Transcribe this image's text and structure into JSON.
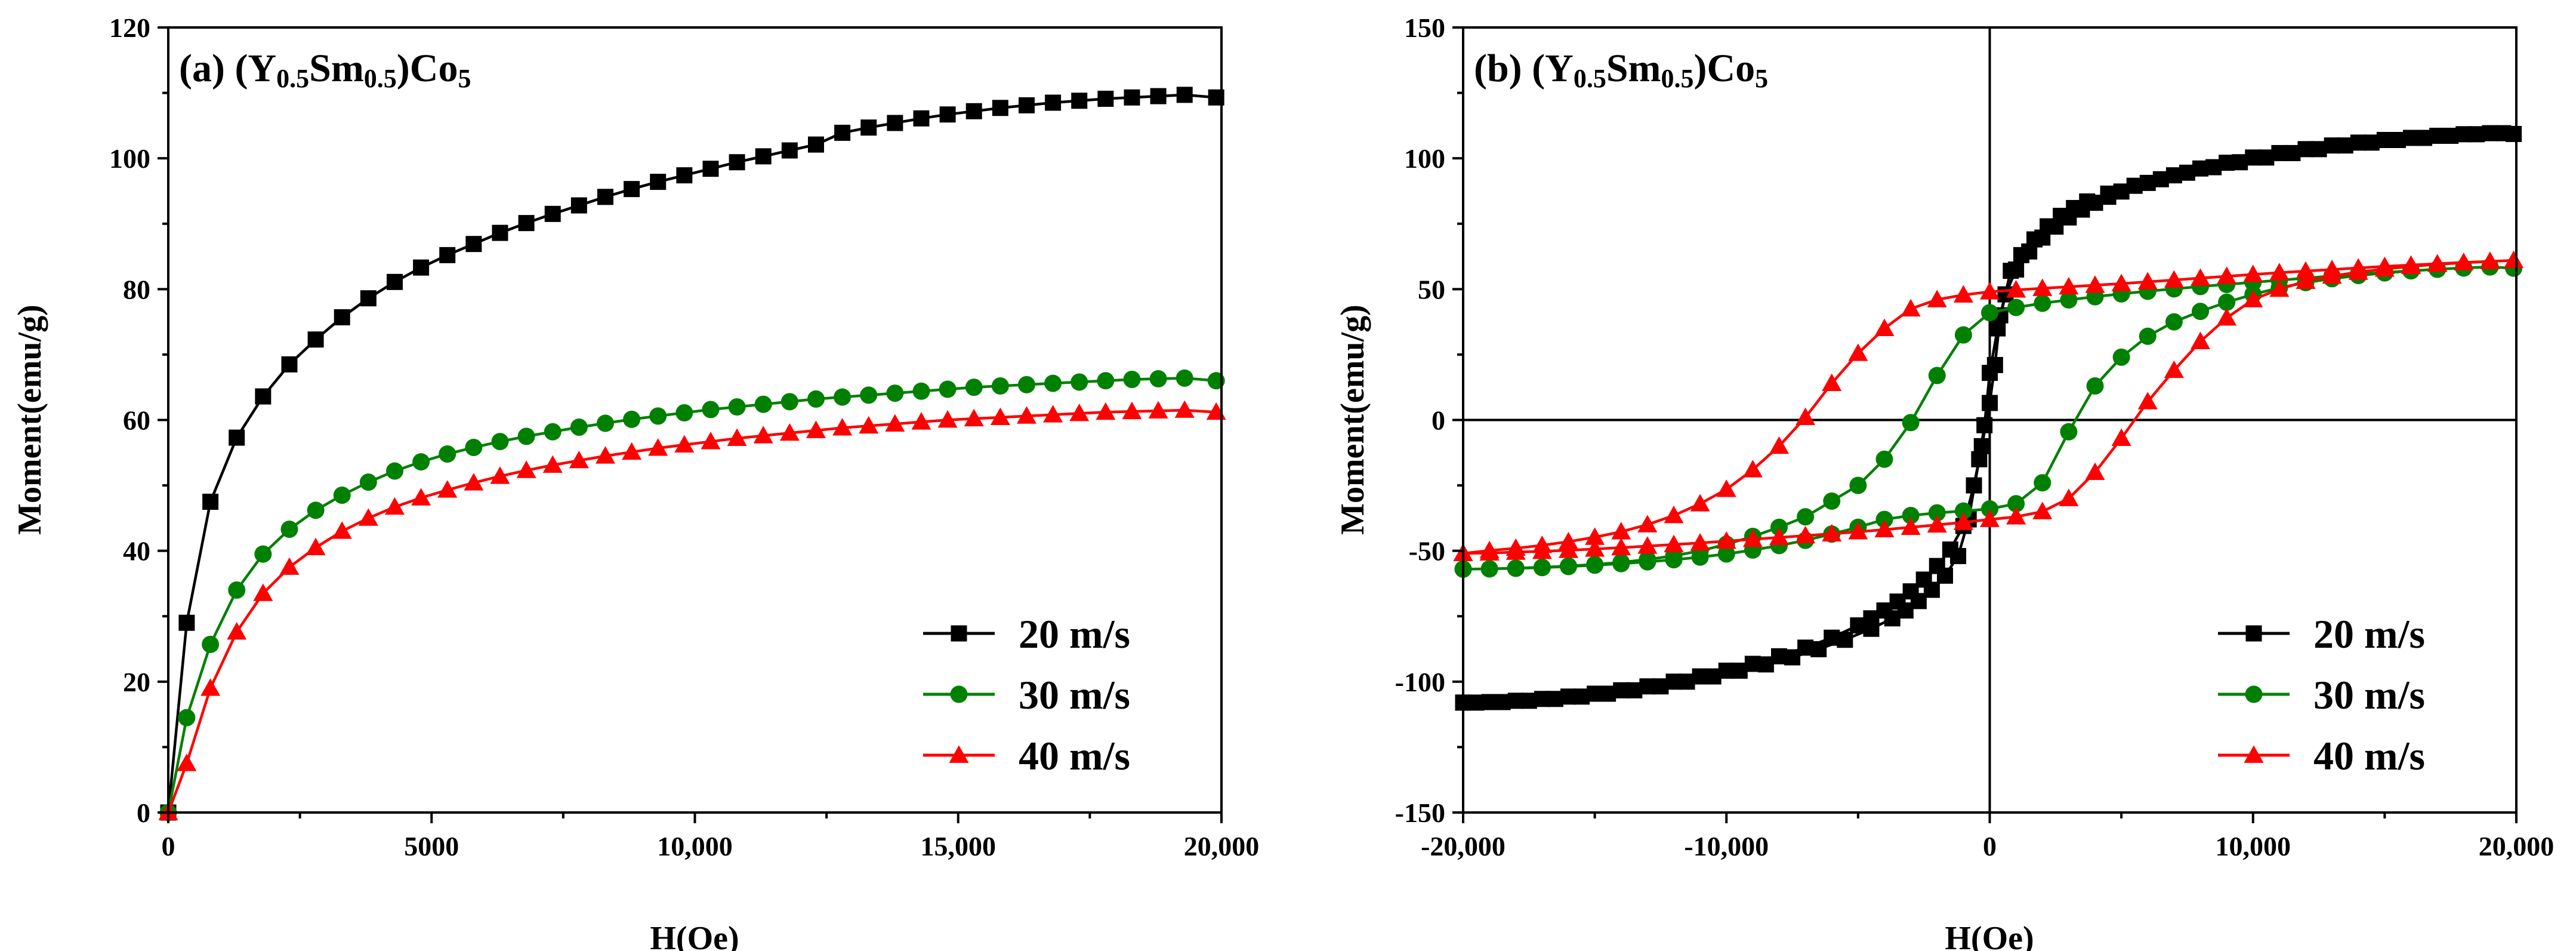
{
  "figure": {
    "panel_a_label": "(a) ",
    "panel_b_label": "(b) "
  },
  "chart_data": [
    {
      "type": "line",
      "title_parts": [
        "(a) (Y",
        "0.5",
        "Sm",
        "0.5",
        ")Co",
        "5"
      ],
      "xlabel": "H(Oe)",
      "ylabel": "Moment(emu/g)",
      "xlim": [
        0,
        20000
      ],
      "ylim": [
        0,
        120
      ],
      "xticks": [
        0,
        5000,
        10000,
        15000,
        20000
      ],
      "xtick_labels": [
        "0",
        "5000",
        "10,000",
        "15,000",
        "20,000"
      ],
      "yticks": [
        0,
        20,
        40,
        60,
        80,
        100,
        120
      ],
      "ytick_labels": [
        "0",
        "20",
        "40",
        "60",
        "80",
        "100",
        "120"
      ],
      "legend_position": "bottom-right",
      "series": [
        {
          "name": "20 m/s",
          "color": "#000000",
          "marker": "square",
          "x": [
            0,
            350,
            800,
            1300,
            1800,
            2300,
            2800,
            3300,
            3800,
            4300,
            4800,
            5300,
            5800,
            6300,
            6800,
            7300,
            7800,
            8300,
            8800,
            9300,
            9800,
            10300,
            10800,
            11300,
            11800,
            12300,
            12800,
            13300,
            13800,
            14300,
            14800,
            15300,
            15800,
            16300,
            16800,
            17300,
            17800,
            18300,
            18800,
            19300,
            19900
          ],
          "y": [
            0,
            29,
            47.5,
            57.3,
            63.6,
            68.5,
            72.3,
            75.7,
            78.6,
            81.1,
            83.3,
            85.2,
            86.9,
            88.6,
            90.1,
            91.5,
            92.8,
            94.1,
            95.3,
            96.4,
            97.4,
            98.4,
            99.4,
            100.3,
            101.2,
            102.1,
            103.9,
            104.7,
            105.4,
            106.1,
            106.7,
            107.2,
            107.7,
            108.1,
            108.5,
            108.8,
            109.1,
            109.3,
            109.5,
            109.7,
            109.3
          ]
        },
        {
          "name": "30 m/s",
          "color": "#008000",
          "marker": "circle",
          "x": [
            0,
            350,
            800,
            1300,
            1800,
            2300,
            2800,
            3300,
            3800,
            4300,
            4800,
            5300,
            5800,
            6300,
            6800,
            7300,
            7800,
            8300,
            8800,
            9300,
            9800,
            10300,
            10800,
            11300,
            11800,
            12300,
            12800,
            13300,
            13800,
            14300,
            14800,
            15300,
            15800,
            16300,
            16800,
            17300,
            17800,
            18300,
            18800,
            19300,
            19900
          ],
          "y": [
            0,
            14.5,
            25.7,
            34,
            39.5,
            43.3,
            46.2,
            48.5,
            50.5,
            52.2,
            53.6,
            54.8,
            55.8,
            56.7,
            57.5,
            58.2,
            58.9,
            59.5,
            60.1,
            60.6,
            61.1,
            61.6,
            62,
            62.4,
            62.8,
            63.2,
            63.5,
            63.8,
            64.1,
            64.4,
            64.7,
            65,
            65.2,
            65.4,
            65.6,
            65.8,
            66,
            66.2,
            66.3,
            66.4,
            66
          ]
        },
        {
          "name": "40 m/s",
          "color": "#ff0000",
          "marker": "triangle",
          "x": [
            0,
            350,
            800,
            1300,
            1800,
            2300,
            2800,
            3300,
            3800,
            4300,
            4800,
            5300,
            5800,
            6300,
            6800,
            7300,
            7800,
            8300,
            8800,
            9300,
            9800,
            10300,
            10800,
            11300,
            11800,
            12300,
            12800,
            13300,
            13800,
            14300,
            14800,
            15300,
            15800,
            16300,
            16800,
            17300,
            17800,
            18300,
            18800,
            19300,
            19900
          ],
          "y": [
            0,
            7.5,
            19,
            27.6,
            33.5,
            37.5,
            40.5,
            43,
            45,
            46.7,
            48.1,
            49.3,
            50.4,
            51.4,
            52.3,
            53.1,
            53.8,
            54.5,
            55.1,
            55.7,
            56.2,
            56.7,
            57.2,
            57.6,
            58,
            58.4,
            58.8,
            59.1,
            59.4,
            59.7,
            60,
            60.2,
            60.4,
            60.6,
            60.8,
            61,
            61.2,
            61.3,
            61.4,
            61.5,
            61.2
          ]
        }
      ]
    },
    {
      "type": "line",
      "title_parts": [
        "(b) (Y",
        "0.5",
        "Sm",
        "0.5",
        ")Co",
        "5"
      ],
      "xlabel": "H(Oe)",
      "ylabel": "Moment(emu/g)",
      "xlim": [
        -20000,
        20000
      ],
      "ylim": [
        -150,
        150
      ],
      "xticks": [
        -20000,
        -10000,
        0,
        10000,
        20000
      ],
      "xtick_labels": [
        "-20,000",
        "-10,000",
        "0",
        "10,000",
        "20,000"
      ],
      "yticks": [
        -150,
        -100,
        -50,
        0,
        50,
        100,
        150
      ],
      "ytick_labels": [
        "-150",
        "-100",
        "-50",
        "0",
        "50",
        "100",
        "150"
      ],
      "legend_position": "bottom-right",
      "series": [
        {
          "name": "20 m/s",
          "color": "#000000",
          "marker": "square",
          "x": [
            -20000,
            -19000,
            -18000,
            -17000,
            -16000,
            -15000,
            -14000,
            -13000,
            -12000,
            -11000,
            -10000,
            -9000,
            -8000,
            -7000,
            -6000,
            -5000,
            -4500,
            -4000,
            -3500,
            -3000,
            -2500,
            -2000,
            -1500,
            -1000,
            -600,
            -300,
            0,
            200,
            400,
            800,
            1200,
            1700,
            2200,
            2700,
            3200,
            3700,
            4500,
            5500,
            6500,
            7500,
            8500,
            9500,
            10500,
            11500,
            12500,
            13500,
            14500,
            15500,
            16500,
            17500,
            18500,
            19500,
            19900,
            19000,
            18000,
            17000,
            16000,
            15000,
            14000,
            13000,
            12000,
            11000,
            10000,
            9000,
            8000,
            7000,
            6000,
            5000,
            4500,
            4000,
            3500,
            3000,
            2500,
            2000,
            1500,
            1000,
            600,
            300,
            0,
            -200,
            -400,
            -800,
            -1200,
            -1700,
            -2200,
            -2700,
            -3200,
            -3700,
            -4500,
            -5500,
            -6500,
            -7500,
            -8500,
            -9500,
            -10500,
            -11500,
            -12500,
            -13500,
            -14500,
            -15500,
            -16500,
            -17500,
            -18500,
            -19500,
            -20000
          ],
          "y": [
            -108,
            -107.8,
            -107.3,
            -106.6,
            -105.7,
            -104.6,
            -103.3,
            -101.8,
            -100,
            -98,
            -95.8,
            -93.2,
            -90.3,
            -87,
            -83.2,
            -78.5,
            -75.8,
            -72.8,
            -69.4,
            -65.5,
            -61,
            -55.8,
            -49.5,
            -40.5,
            -25,
            -10,
            6.5,
            21,
            40,
            57,
            63,
            69,
            74,
            78,
            81,
            83.5,
            86.5,
            89.5,
            92,
            94.5,
            96.6,
            98.5,
            100.3,
            102,
            103.5,
            104.9,
            106,
            107,
            107.8,
            108.6,
            109.2,
            109.6,
            109.3,
            109.6,
            109.2,
            108.6,
            107.8,
            107,
            106,
            104.9,
            103.5,
            102,
            100.3,
            98.3,
            96.1,
            93.5,
            90.6,
            87.3,
            85.3,
            83,
            80.4,
            77.4,
            73.9,
            69.7,
            64.4,
            57.5,
            48,
            35,
            18,
            -2,
            -15,
            -38,
            -52,
            -59.5,
            -64.9,
            -69.2,
            -72.8,
            -75.8,
            -79.8,
            -84,
            -87.6,
            -90.7,
            -93.4,
            -95.8,
            -98,
            -100,
            -101.8,
            -103.3,
            -104.6,
            -105.7,
            -106.6,
            -107.3,
            -107.8,
            -108,
            -108
          ]
        },
        {
          "name": "30 m/s",
          "color": "#008000",
          "marker": "circle",
          "x": [
            -20000,
            -19000,
            -18000,
            -17000,
            -16000,
            -15000,
            -14000,
            -13000,
            -12000,
            -11000,
            -10000,
            -9000,
            -8000,
            -7000,
            -6000,
            -5000,
            -4000,
            -3000,
            -2000,
            -1000,
            0,
            1000,
            2000,
            3000,
            4000,
            5000,
            6000,
            7000,
            8000,
            9000,
            10000,
            11000,
            12000,
            13000,
            14000,
            15000,
            16000,
            17000,
            18000,
            19000,
            19900,
            19000,
            18000,
            17000,
            16000,
            15000,
            14000,
            13000,
            12000,
            11000,
            10000,
            9000,
            8000,
            7000,
            6000,
            5000,
            4000,
            3000,
            2000,
            1000,
            0,
            -1000,
            -2000,
            -3000,
            -4000,
            -5000,
            -6000,
            -7000,
            -8000,
            -9000,
            -10000,
            -11000,
            -12000,
            -13000,
            -14000,
            -15000,
            -16000,
            -17000,
            -18000,
            -19000,
            -20000
          ],
          "y": [
            -57,
            -56.9,
            -56.7,
            -56.4,
            -56,
            -55.5,
            -54.9,
            -54.2,
            -53.4,
            -52.4,
            -51.2,
            -49.7,
            -48,
            -46,
            -43.6,
            -41,
            -38,
            -36.5,
            -35.5,
            -34.8,
            -34,
            -32,
            -24,
            -4.5,
            13,
            24,
            32,
            37.5,
            41.5,
            45,
            48,
            50.5,
            52.5,
            54,
            55.2,
            56.2,
            57,
            57.6,
            58.1,
            58.5,
            58,
            58.5,
            58.1,
            57.6,
            57,
            56.4,
            55.7,
            55,
            54.2,
            53.4,
            52.6,
            51.8,
            51,
            50.1,
            49.2,
            48.2,
            47.1,
            45.9,
            44.6,
            43,
            41,
            32.5,
            17,
            -1,
            -15,
            -25,
            -31,
            -37,
            -41,
            -44.5,
            -47.5,
            -50,
            -51.9,
            -53.3,
            -54.4,
            -55.2,
            -55.8,
            -56.3,
            -56.6,
            -56.9,
            -57
          ]
        },
        {
          "name": "40 m/s",
          "color": "#ff0000",
          "marker": "triangle",
          "x": [
            -20000,
            -19000,
            -18000,
            -17000,
            -16000,
            -15000,
            -14000,
            -13000,
            -12000,
            -11000,
            -10000,
            -9000,
            -8000,
            -7000,
            -6000,
            -5000,
            -4000,
            -3000,
            -2000,
            -1000,
            0,
            1000,
            2000,
            3000,
            4000,
            5000,
            6000,
            7000,
            8000,
            9000,
            10000,
            11000,
            12000,
            13000,
            14000,
            15000,
            16000,
            17000,
            18000,
            19000,
            19900,
            19000,
            18000,
            17000,
            16000,
            15000,
            14000,
            13000,
            12000,
            11000,
            10000,
            9000,
            8000,
            7000,
            6000,
            5000,
            4000,
            3000,
            2000,
            1000,
            0,
            -1000,
            -2000,
            -3000,
            -4000,
            -5000,
            -6000,
            -7000,
            -8000,
            -9000,
            -10000,
            -11000,
            -12000,
            -13000,
            -14000,
            -15000,
            -16000,
            -17000,
            -18000,
            -19000,
            -20000
          ],
          "y": [
            -51,
            -50.8,
            -50.5,
            -50.2,
            -49.8,
            -49.3,
            -48.8,
            -48.2,
            -47.6,
            -47,
            -46.3,
            -45.6,
            -44.9,
            -44.2,
            -43.5,
            -42.7,
            -41.9,
            -41,
            -40.1,
            -39.1,
            -38,
            -37,
            -35,
            -30,
            -20,
            -7,
            7,
            19,
            30,
            39,
            46,
            50,
            53,
            55,
            56.5,
            57.7,
            58.7,
            59.5,
            60.1,
            60.6,
            61,
            60.6,
            60.2,
            59.7,
            59.2,
            58.7,
            58.1,
            57.5,
            56.9,
            56.3,
            55.6,
            54.9,
            54.2,
            53.5,
            52.8,
            52.1,
            51.5,
            50.9,
            50.3,
            49.7,
            49,
            47.8,
            46,
            42.5,
            35,
            25.5,
            14,
            1,
            -10,
            -19,
            -26.5,
            -32,
            -36.5,
            -40,
            -42.7,
            -44.8,
            -46.5,
            -47.9,
            -49,
            -49.9,
            -51
          ]
        }
      ]
    }
  ]
}
